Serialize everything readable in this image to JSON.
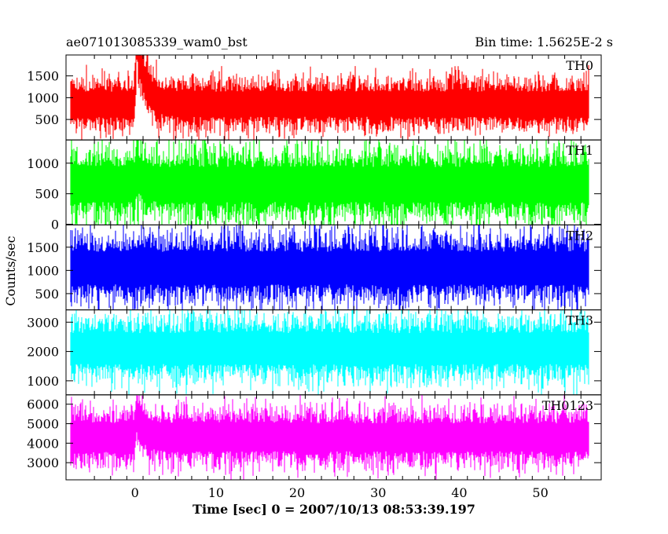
{
  "header": {
    "left": "ae071013085339_wam0_bst",
    "right": "Bin time: 1.5625E-2 s"
  },
  "chart_data": {
    "type": "line",
    "xlabel": "Time [sec] 0 = 2007/10/13 08:53:39.197",
    "ylabel": "Counts/sec",
    "xlim": [
      -8.5,
      57.5
    ],
    "x_ticks": [
      0,
      10,
      20,
      30,
      40,
      50
    ],
    "x_tick_labels": [
      "0",
      "10",
      "20",
      "30",
      "40",
      "50"
    ],
    "x_range_data": [
      -8,
      56
    ],
    "bin_time_s": 0.015625,
    "panels": [
      {
        "name": "TH0",
        "color": "#ff0000",
        "ylim": [
          30,
          1980
        ],
        "yticks": [
          500,
          1000,
          1500
        ],
        "ytick_labels": [
          "500",
          "1000",
          "1500"
        ],
        "baseline": 850,
        "noise": 260,
        "burst": {
          "t0": 0.2,
          "peak": 1450,
          "decay": 1.0
        }
      },
      {
        "name": "TH1",
        "color": "#00ff00",
        "ylim": [
          -10,
          1380
        ],
        "yticks": [
          0,
          500,
          1000
        ],
        "ytick_labels": [
          "0",
          "500",
          "1000"
        ],
        "baseline": 650,
        "noise": 260,
        "burst": {
          "t0": 0.2,
          "peak": 250,
          "decay": 0.8
        }
      },
      {
        "name": "TH2",
        "color": "#0000ff",
        "ylim": [
          150,
          1980
        ],
        "yticks": [
          500,
          1000,
          1500
        ],
        "ytick_labels": [
          "500",
          "1000",
          "1500"
        ],
        "baseline": 1050,
        "noise": 320,
        "burst": null
      },
      {
        "name": "TH3",
        "color": "#00ffff",
        "ylim": [
          520,
          3420
        ],
        "yticks": [
          1000,
          2000,
          3000
        ],
        "ytick_labels": [
          "1000",
          "2000",
          "3000"
        ],
        "baseline": 2100,
        "noise": 480,
        "burst": null
      },
      {
        "name": "TH0123",
        "color": "#ff00ff",
        "ylim": [
          2120,
          6480
        ],
        "yticks": [
          3000,
          4000,
          5000,
          6000
        ],
        "ytick_labels": [
          "3000",
          "4000",
          "5000",
          "6000"
        ],
        "baseline": 4300,
        "noise": 650,
        "burst": {
          "t0": 0.2,
          "peak": 1300,
          "decay": 0.9
        }
      }
    ]
  }
}
